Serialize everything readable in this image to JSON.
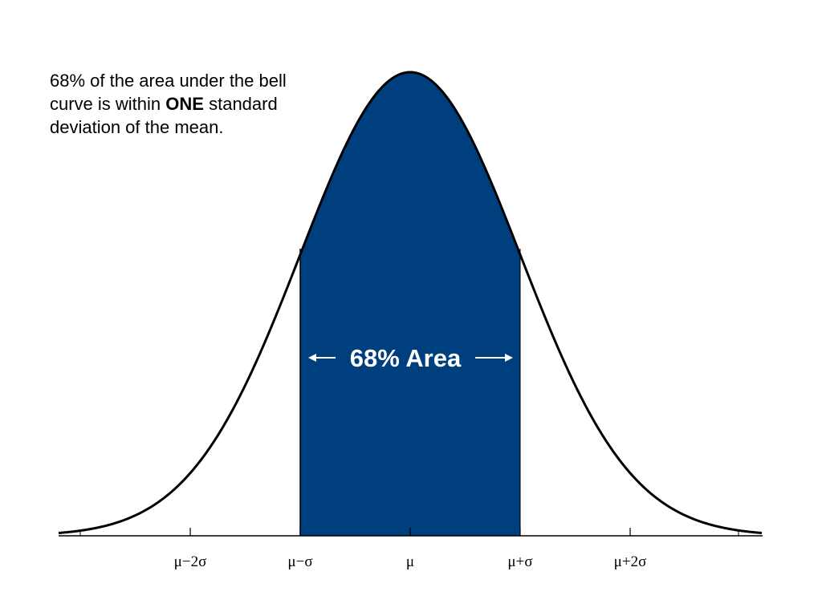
{
  "description": [
    "68% of the area under the bell",
    "curve is within",
    "ONE",
    "standard",
    "deviation of the mean."
  ],
  "area_label": "68% Area",
  "axis_labels": [
    "μ−2σ",
    "μ−σ",
    "μ",
    "μ+σ",
    "μ+2σ"
  ]
}
